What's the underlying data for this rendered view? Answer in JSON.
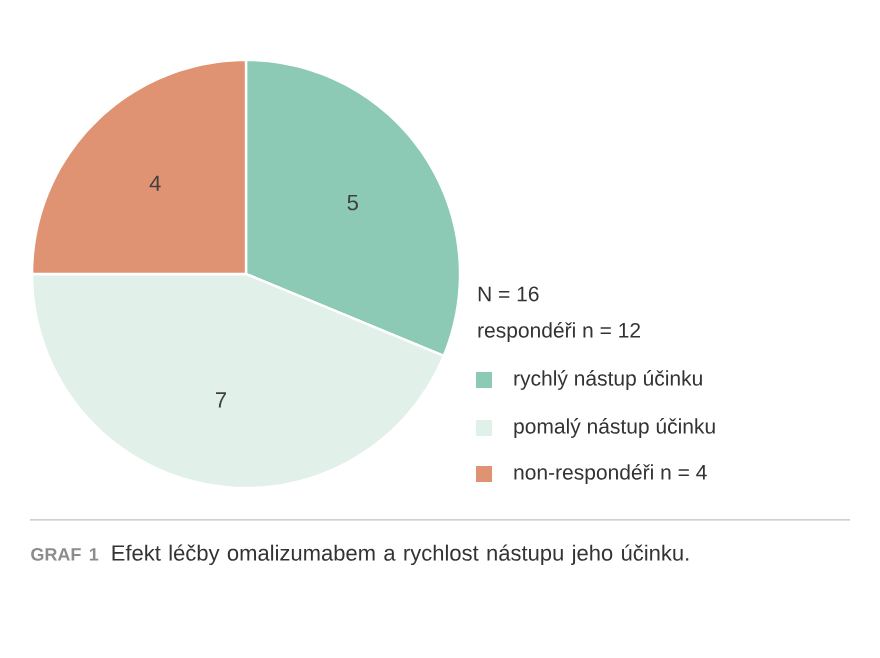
{
  "chart_data": {
    "type": "pie",
    "title": "Efekt léčby omalizumabem a rychlost nástupu jeho účinku.",
    "categories": [
      "rychlý nástup účinku",
      "pomalý nástup účinku",
      "non-respondéři n = 4"
    ],
    "values": [
      5,
      7,
      4
    ],
    "colors": [
      "#8dcab5",
      "#e2f0ea",
      "#e09373"
    ],
    "data_labels": true,
    "legend": "right",
    "annotations": [
      "N = 16",
      "respondéři n = 12",
      "GRAF 1"
    ]
  }
}
